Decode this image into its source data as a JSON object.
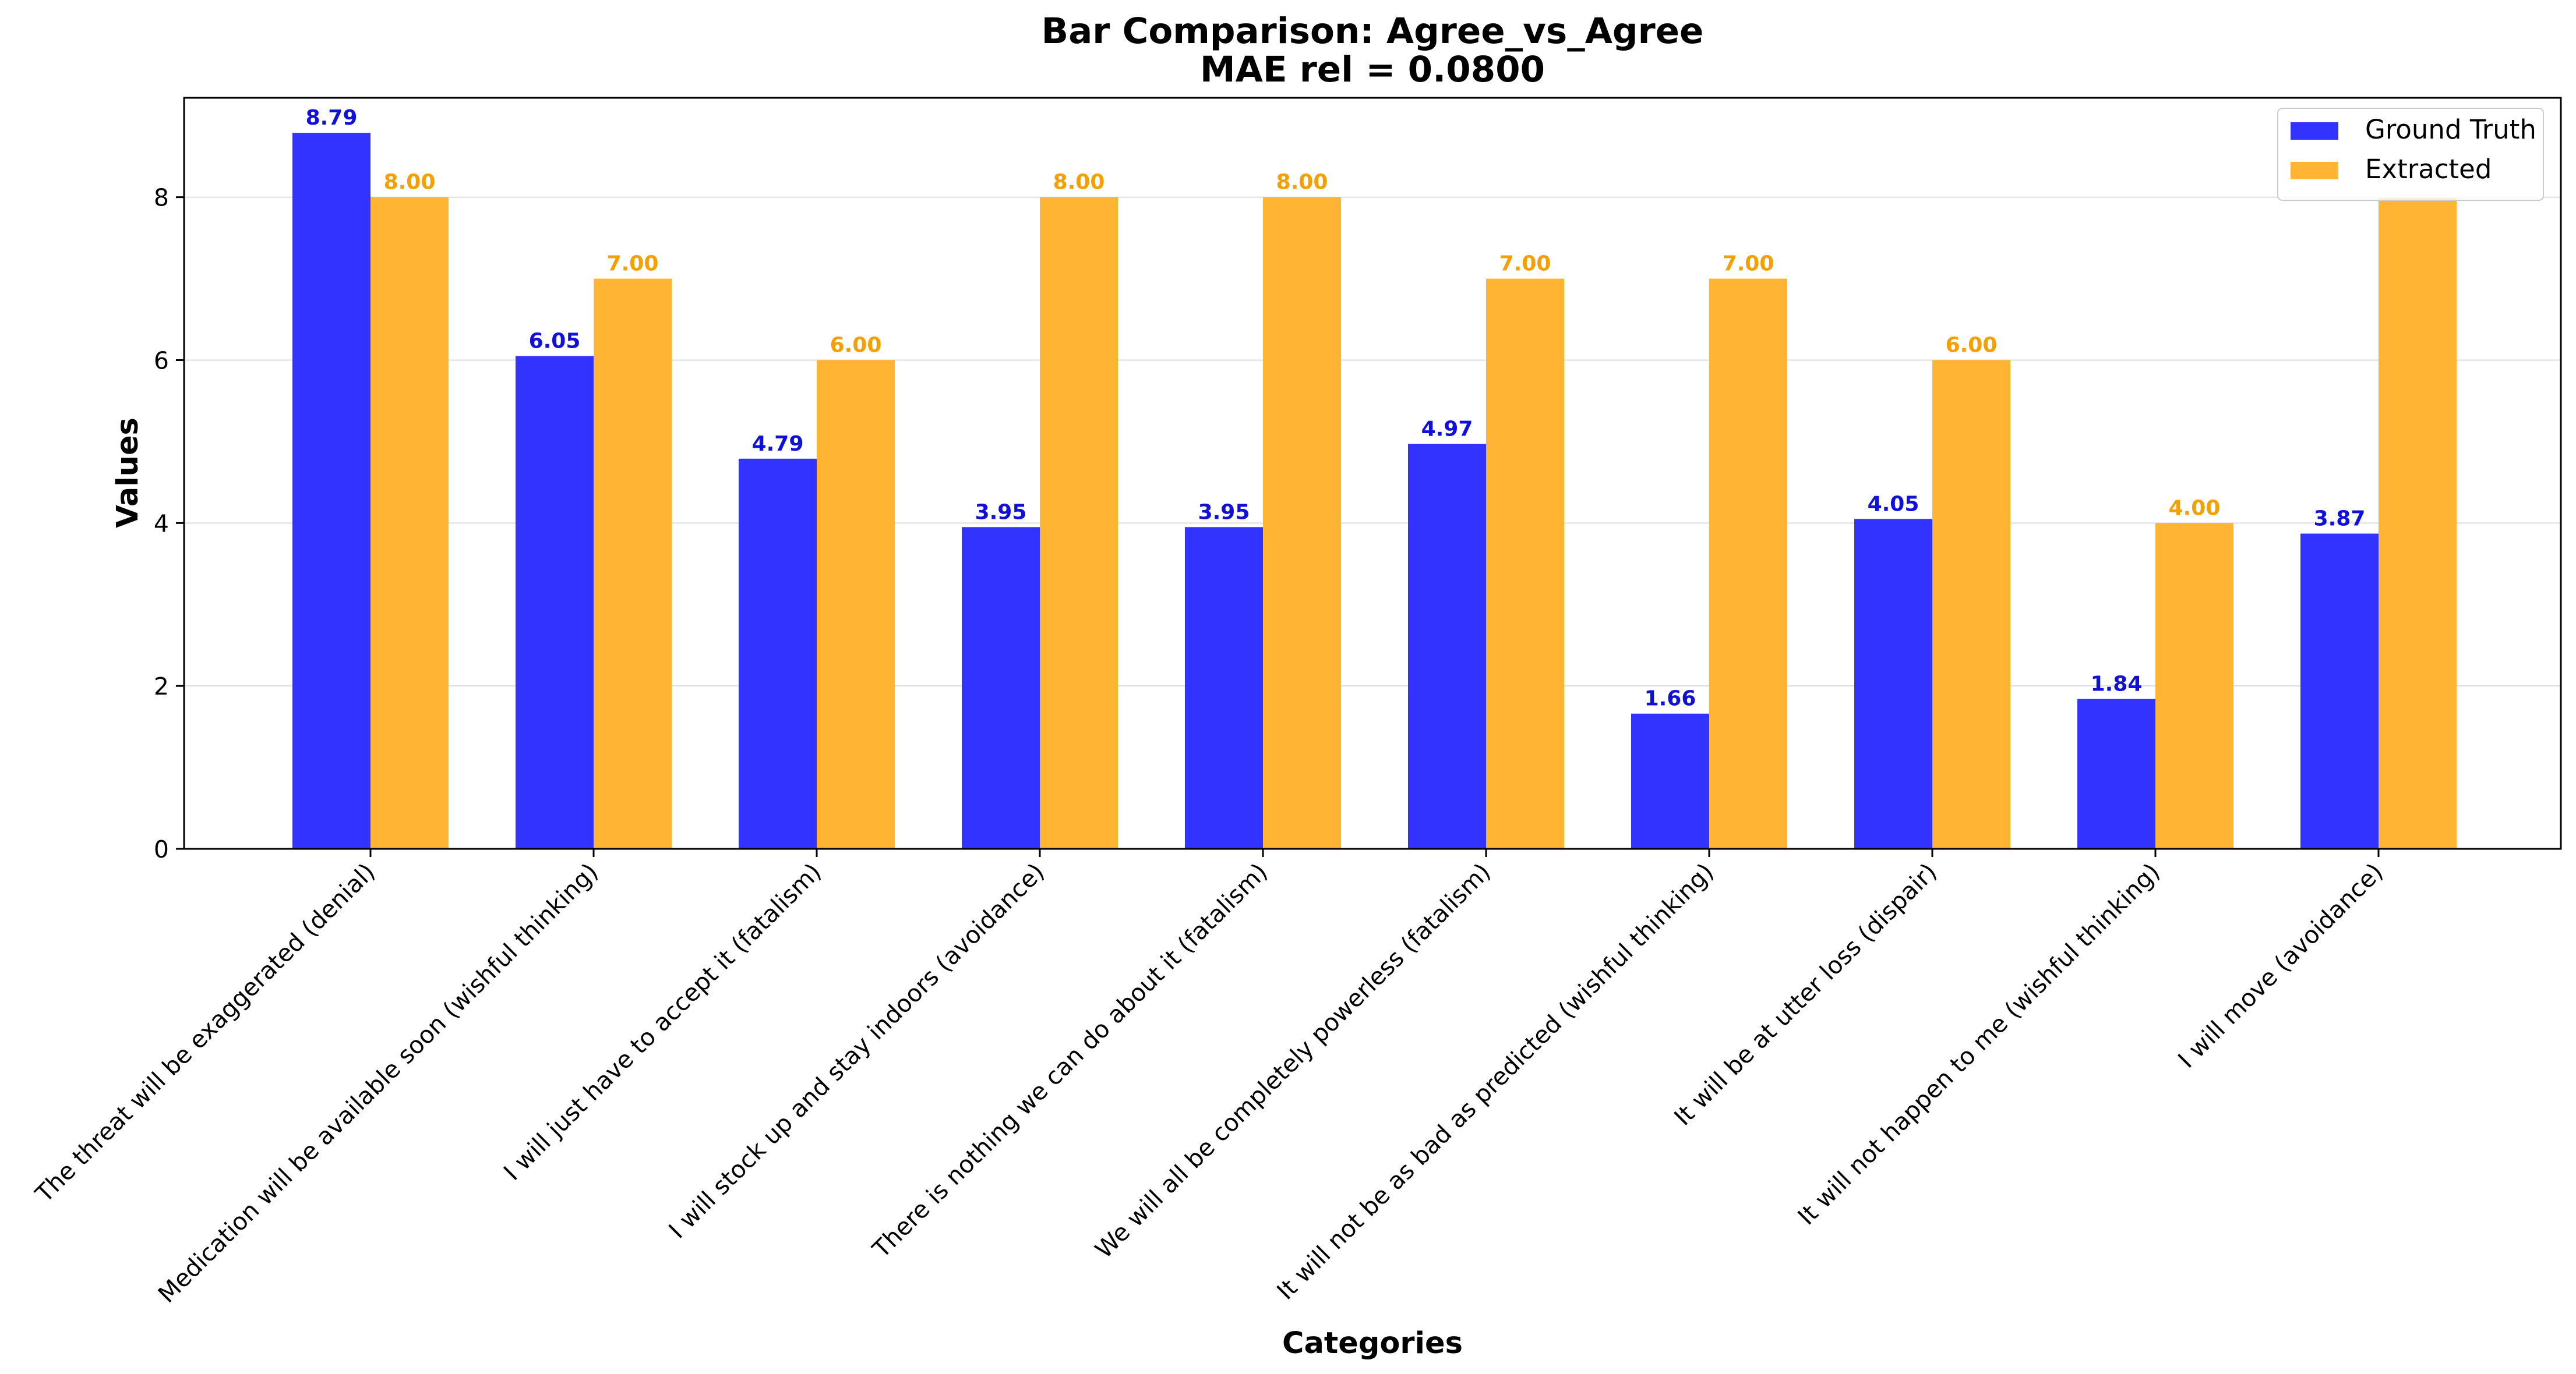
{
  "chart_data": {
    "type": "bar",
    "title": "Bar Comparison: Agree_vs_Agree",
    "subtitle": "MAE rel = 0.0800",
    "xlabel": "Categories",
    "ylabel": "Values",
    "ylim": [
      0,
      9.22
    ],
    "yticks": [
      0,
      2,
      4,
      6,
      8
    ],
    "grid": true,
    "legend_position": "top-right",
    "categories": [
      "The threat will be exaggerated (denial)",
      "Medication will be available soon (wishful thinking)",
      "I will just have to accept it (fatalism)",
      "I will stock up and stay indoors (avoidance)",
      "There is nothing we can do about it (fatalism)",
      "We will all be completely powerless (fatalism)",
      "It will not be as bad as predicted (wishful thinking)",
      "It will be at utter loss (dispair)",
      "It will not happen to me (wishful thinking)",
      "I will move (avoidance)"
    ],
    "series": [
      {
        "name": "Ground Truth",
        "color": "#3333ff",
        "label_color": "#1010dd",
        "values": [
          8.79,
          6.05,
          4.79,
          3.95,
          3.95,
          4.97,
          1.66,
          4.05,
          1.84,
          3.87
        ],
        "value_labels": [
          "8.79",
          "6.05",
          "4.79",
          "3.95",
          "3.95",
          "4.97",
          "1.66",
          "4.05",
          "1.84",
          "3.87"
        ]
      },
      {
        "name": "Extracted",
        "color": "#ffb433",
        "label_color": "#f5a000",
        "values": [
          8,
          7,
          6,
          8,
          8,
          7,
          7,
          6,
          4,
          8
        ],
        "value_labels": [
          "8.00",
          "7.00",
          "6.00",
          "8.00",
          "8.00",
          "7.00",
          "7.00",
          "6.00",
          "4.00",
          ""
        ]
      }
    ]
  }
}
